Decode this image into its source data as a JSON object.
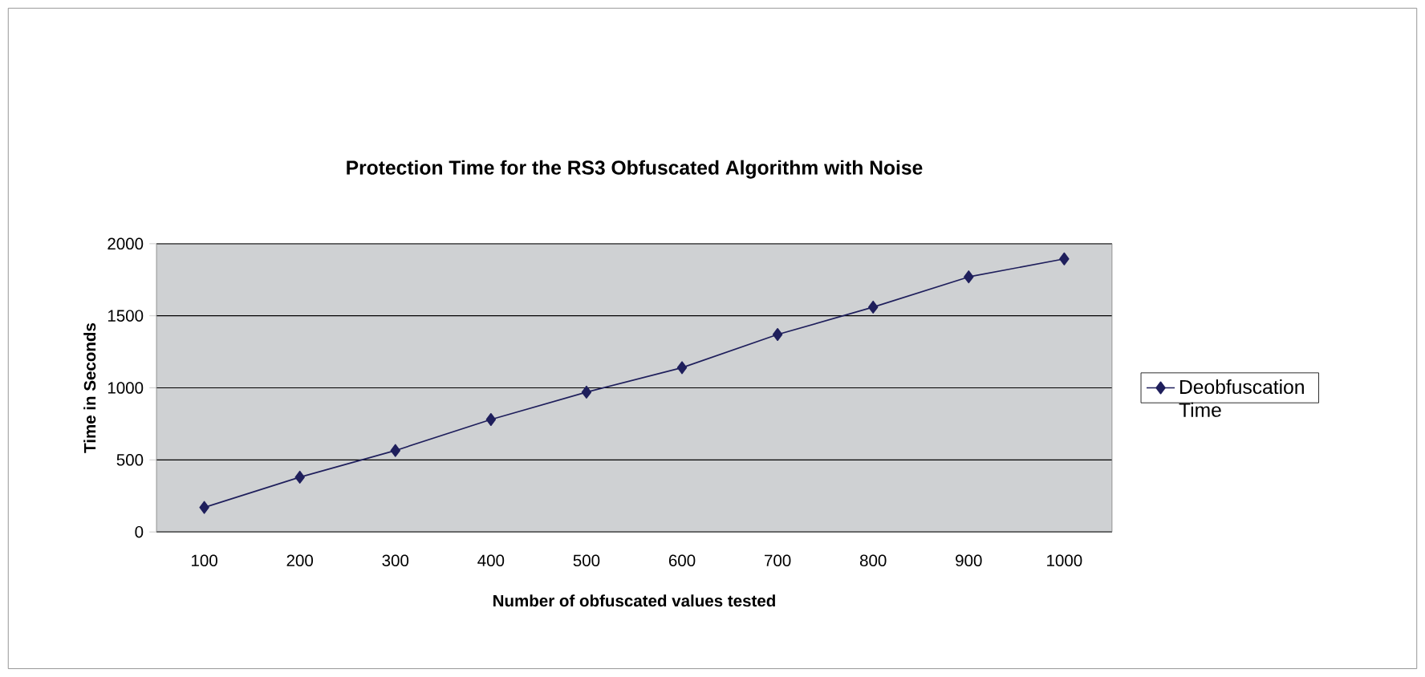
{
  "chart_data": {
    "type": "line",
    "title": "Protection Time for the RS3 Obfuscated Algorithm with Noise",
    "xlabel": "Number of obfuscated values tested",
    "ylabel": "Time in Seconds",
    "categories": [
      "100",
      "200",
      "300",
      "400",
      "500",
      "600",
      "700",
      "800",
      "900",
      "1000"
    ],
    "series": [
      {
        "name": "Deobfuscation Time",
        "color": "#1f1f5c",
        "values": [
          170,
          380,
          565,
          780,
          970,
          1140,
          1370,
          1560,
          1770,
          1895
        ]
      }
    ],
    "ylim": [
      0,
      2000
    ],
    "yticks": [
      0,
      500,
      1000,
      1500,
      2000
    ],
    "grid": "y",
    "legend": "right",
    "marker": "diamond"
  }
}
